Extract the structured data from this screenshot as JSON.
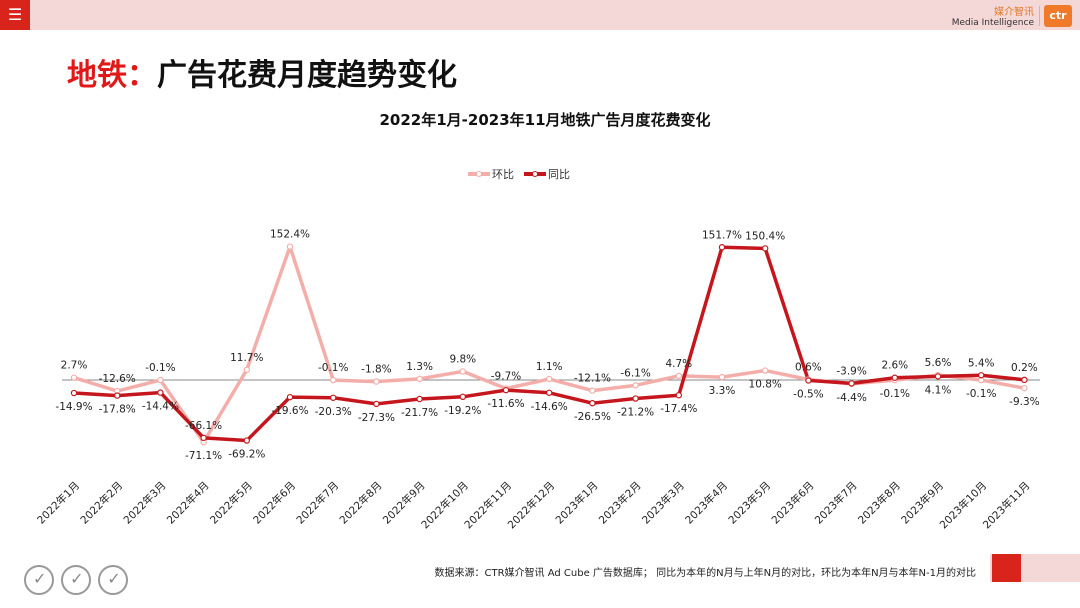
{
  "header": {
    "menu_icon": "hamburger-icon",
    "brand_cn": "媒介智讯",
    "brand_en": "Media Intelligence",
    "logo_text": "ctr"
  },
  "page": {
    "title_highlight": "地铁：",
    "title_rest": "广告花费月度趋势变化"
  },
  "footer": {
    "source": "数据来源：CTR媒介智讯 Ad Cube 广告数据库；  同比为本年的N月与上年N月的对比，环比为本年N月与本年N-1月的对比"
  },
  "chart_data": {
    "type": "line",
    "title": "2022年1月-2023年11月地铁广告月度花费变化",
    "categories": [
      "2022年1月",
      "2022年2月",
      "2022年3月",
      "2022年4月",
      "2022年5月",
      "2022年6月",
      "2022年7月",
      "2022年8月",
      "2022年9月",
      "2022年10月",
      "2022年11月",
      "2022年12月",
      "2023年1月",
      "2023年2月",
      "2023年3月",
      "2023年4月",
      "2023年5月",
      "2023年6月",
      "2023年7月",
      "2023年8月",
      "2023年9月",
      "2023年10月",
      "2023年11月"
    ],
    "series": [
      {
        "name": "环比",
        "color": "#f4aeaa",
        "values": [
          2.7,
          -12.6,
          -0.1,
          -71.1,
          11.7,
          152.4,
          -0.1,
          -1.8,
          1.3,
          9.8,
          -9.7,
          1.1,
          -12.1,
          -6.1,
          4.7,
          3.3,
          10.8,
          0.6,
          -4.4,
          -0.1,
          5.6,
          -0.1,
          -9.3
        ],
        "labels": [
          "2.7%",
          "-12.6%",
          "-0.1%",
          "-71.1%",
          "11.7%",
          "152.4%",
          "-0.1%",
          "-1.8%",
          "1.3%",
          "9.8%",
          "-9.7%",
          "1.1%",
          "-12.1%",
          "-6.1%",
          "4.7%",
          "3.3%",
          "10.8%",
          "0.6%",
          "-4.4%",
          "-0.1%",
          "5.6%",
          "-0.1%",
          "-9.3%"
        ]
      },
      {
        "name": "同比",
        "color": "#c4161c",
        "values": [
          -14.9,
          -17.8,
          -14.4,
          -66.1,
          -69.2,
          -19.6,
          -20.3,
          -27.3,
          -21.7,
          -19.2,
          -11.6,
          -14.6,
          -26.5,
          -21.2,
          -17.4,
          151.7,
          150.4,
          -0.5,
          -3.9,
          2.6,
          4.1,
          5.4,
          0.2
        ],
        "labels": [
          "-14.9%",
          "-17.8%",
          "-14.4%",
          "-66.1%",
          "-69.2%",
          "-19.6%",
          "-20.3%",
          "-27.3%",
          "-21.7%",
          "-19.2%",
          "-11.6%",
          "-14.6%",
          "-26.5%",
          "-21.2%",
          "-17.4%",
          "151.7%",
          "150.4%",
          "-0.5%",
          "-3.9%",
          "2.6%",
          "4.1%",
          "5.4%",
          "0.2%"
        ]
      }
    ],
    "ylim": [
      -80,
      160
    ],
    "legend_position": "top-center",
    "grid": false
  }
}
